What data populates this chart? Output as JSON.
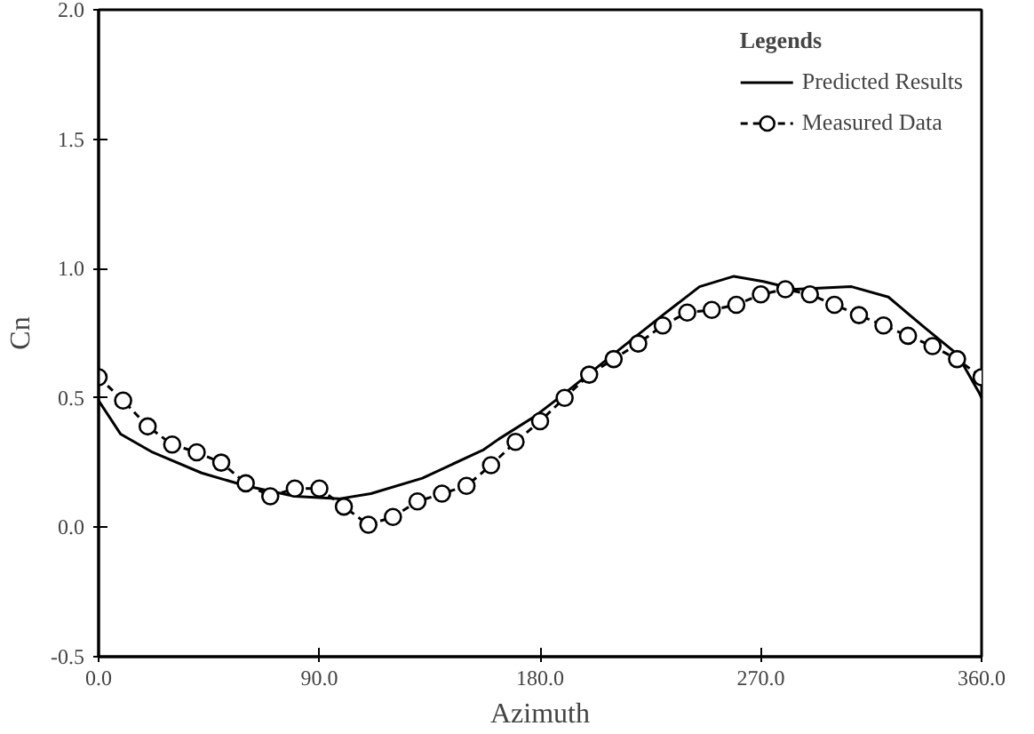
{
  "chart_data": {
    "type": "line",
    "xlabel": "Azimuth",
    "ylabel": "Cn",
    "legend_title": "Legends",
    "legend": "top right",
    "grid": false,
    "xlim": [
      0,
      360
    ],
    "xticks": [
      {
        "value": 0,
        "label": "0.0"
      },
      {
        "value": 90,
        "label": "90.0"
      },
      {
        "value": 180,
        "label": "180.0"
      },
      {
        "value": 270,
        "label": "270.0"
      },
      {
        "value": 360,
        "label": "360.0"
      }
    ],
    "ylim": [
      -0.5,
      2.0
    ],
    "yticks": [
      {
        "value": -0.5,
        "label": "-0.5"
      },
      {
        "value": 0,
        "label": "0.0"
      },
      {
        "value": 0.5,
        "label": "0.5"
      },
      {
        "value": 1.0,
        "label": "1.0"
      },
      {
        "value": 1.5,
        "label": "1.5"
      },
      {
        "value": 2.0,
        "label": "2.0"
      }
    ],
    "series": [
      {
        "name": "Predicted Results",
        "color": "#000000",
        "marker": "none",
        "line_style": "solid",
        "x": [
          0,
          9,
          22,
          42,
          60,
          80,
          98,
          111,
          132,
          157,
          163,
          178,
          189,
          214,
          230,
          245,
          259,
          271,
          284,
          307,
          322,
          337,
          350,
          359,
          360
        ],
        "values": [
          0.49,
          0.36,
          0.29,
          0.21,
          0.16,
          0.12,
          0.11,
          0.13,
          0.19,
          0.3,
          0.34,
          0.43,
          0.51,
          0.7,
          0.82,
          0.93,
          0.97,
          0.95,
          0.92,
          0.93,
          0.89,
          0.77,
          0.67,
          0.52,
          0.5
        ]
      },
      {
        "name": "Measured Data",
        "color": "#000000",
        "marker": "circle",
        "line_style": "dashed",
        "x": [
          0,
          10,
          20,
          30,
          40,
          50,
          60,
          70,
          80,
          90,
          100,
          110,
          120,
          130,
          140,
          150,
          160,
          170,
          180,
          190,
          200,
          210,
          220,
          230,
          240,
          250,
          260,
          270,
          280,
          290,
          300,
          310,
          320,
          330,
          340,
          350,
          360
        ],
        "values": [
          0.58,
          0.49,
          0.39,
          0.32,
          0.29,
          0.25,
          0.17,
          0.12,
          0.15,
          0.15,
          0.08,
          0.01,
          0.04,
          0.1,
          0.13,
          0.16,
          0.24,
          0.33,
          0.41,
          0.5,
          0.59,
          0.65,
          0.71,
          0.78,
          0.83,
          0.84,
          0.86,
          0.9,
          0.92,
          0.9,
          0.86,
          0.82,
          0.78,
          0.74,
          0.7,
          0.65,
          0.58
        ]
      }
    ]
  }
}
